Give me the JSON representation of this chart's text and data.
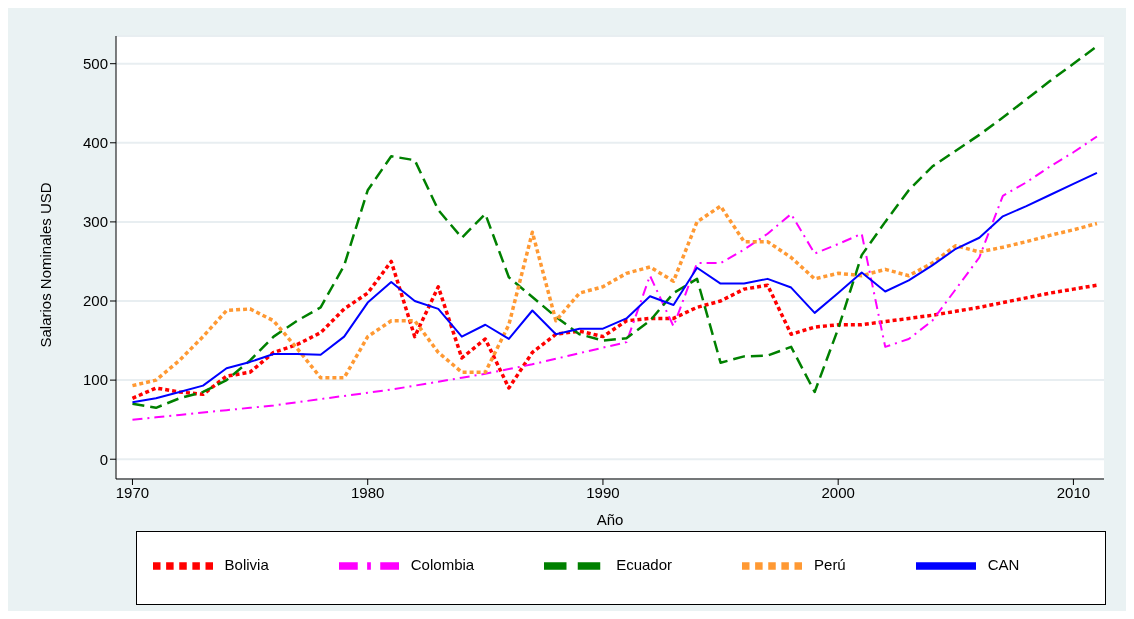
{
  "chart_data": {
    "type": "line",
    "xlabel": "Año",
    "ylabel": "Salarios Nominales USD",
    "x": [
      1970,
      1971,
      1972,
      1973,
      1974,
      1975,
      1976,
      1977,
      1978,
      1979,
      1980,
      1981,
      1982,
      1983,
      1984,
      1985,
      1986,
      1987,
      1988,
      1989,
      1990,
      1991,
      1992,
      1993,
      1994,
      1995,
      1996,
      1997,
      1998,
      1999,
      2000,
      2001,
      2002,
      2003,
      2004,
      2005,
      2006,
      2007,
      2008,
      2009,
      2010,
      2011
    ],
    "series": [
      {
        "name": "Bolivia",
        "color": "#ff0000",
        "line_style": "dotted",
        "values": [
          77,
          90,
          85,
          82,
          105,
          110,
          135,
          145,
          160,
          190,
          210,
          250,
          155,
          218,
          128,
          152,
          90,
          135,
          158,
          162,
          155,
          175,
          178,
          178,
          192,
          200,
          215,
          220,
          158,
          167,
          170,
          170,
          174,
          178,
          182,
          187,
          192,
          198,
          204,
          210,
          215,
          220
        ]
      },
      {
        "name": "Colombia",
        "color": "#ff00ff",
        "line_style": "dashdot",
        "values": [
          50,
          53,
          56,
          59,
          62,
          65,
          68,
          72,
          76,
          80,
          84,
          88,
          93,
          98,
          103,
          108,
          114,
          120,
          127,
          134,
          141,
          148,
          232,
          168,
          248,
          248,
          265,
          285,
          310,
          260,
          272,
          285,
          142,
          152,
          175,
          215,
          255,
          333,
          350,
          370,
          388,
          408
        ]
      },
      {
        "name": "Ecuador",
        "color": "#008000",
        "line_style": "dashed",
        "values": [
          70,
          65,
          77,
          85,
          100,
          125,
          155,
          175,
          192,
          245,
          340,
          383,
          378,
          315,
          280,
          310,
          230,
          205,
          180,
          158,
          150,
          153,
          175,
          210,
          228,
          122,
          130,
          131,
          142,
          85,
          165,
          258,
          300,
          340,
          370,
          390,
          410,
          432,
          455,
          478,
          500,
          522
        ]
      },
      {
        "name": "Perú",
        "color": "#ff9933",
        "line_style": "dotted",
        "values": [
          93,
          100,
          125,
          155,
          188,
          190,
          175,
          140,
          103,
          103,
          155,
          175,
          175,
          135,
          110,
          110,
          170,
          287,
          175,
          210,
          218,
          235,
          243,
          225,
          300,
          320,
          275,
          275,
          255,
          228,
          235,
          232,
          240,
          232,
          248,
          270,
          262,
          268,
          275,
          283,
          290,
          298
        ]
      },
      {
        "name": "CAN",
        "color": "#0000ff",
        "line_style": "solid",
        "values": [
          72,
          77,
          85,
          93,
          115,
          123,
          133,
          133,
          132,
          155,
          198,
          224,
          200,
          190,
          155,
          170,
          152,
          188,
          158,
          165,
          165,
          178,
          206,
          195,
          242,
          222,
          222,
          228,
          217,
          185,
          210,
          236,
          212,
          226,
          245,
          266,
          280,
          307,
          320,
          334,
          348,
          362
        ]
      }
    ],
    "xlim": [
      1969.3,
      2011.3
    ],
    "xticks": [
      1970,
      1980,
      1990,
      2000,
      2010
    ],
    "ylim": [
      -25,
      535
    ],
    "yticks": [
      0,
      100,
      200,
      300,
      400,
      500
    ],
    "grid": "y",
    "legend": "bottom",
    "marker": "none"
  }
}
